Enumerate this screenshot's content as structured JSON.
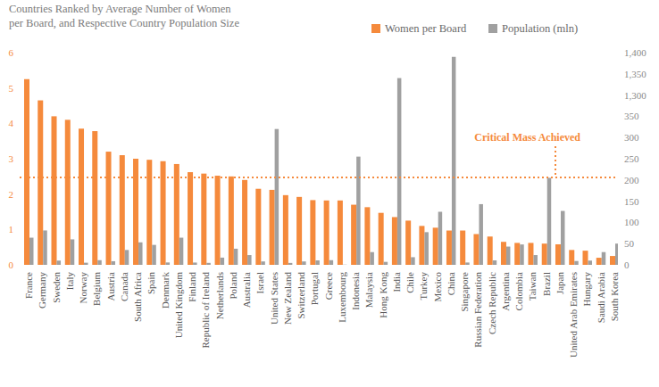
{
  "chart_data": {
    "type": "bar",
    "title": "Countries Ranked by Average Number of Women per Board, and Respective Country Population Size",
    "categories": [
      "France",
      "Germany",
      "Sweden",
      "Italy",
      "Norway",
      "Belgium",
      "Austria",
      "Canada",
      "South Africa",
      "Spain",
      "Denmark",
      "United Kingdom",
      "Finland",
      "Republic of Ireland",
      "Netherlands",
      "Poland",
      "Australia",
      "Israel",
      "United States",
      "New Zealand",
      "Switzerland",
      "Portugal",
      "Greece",
      "Luxembourg",
      "Indonesia",
      "Malaysia",
      "Hong Kong",
      "India",
      "Chile",
      "Turkey",
      "Mexico",
      "China",
      "Singapore",
      "Russian Federation",
      "Czech Republic",
      "Argentina",
      "Colombia",
      "Taiwan",
      "Brazil",
      "Japan",
      "United Arab Emirates",
      "Hungary",
      "Saudi Arabia",
      "South Korea"
    ],
    "series": [
      {
        "name": "Women per Board",
        "color": "#f58a3c",
        "values": [
          5.25,
          4.65,
          4.2,
          4.1,
          3.85,
          3.78,
          3.2,
          3.1,
          3.0,
          2.97,
          2.93,
          2.85,
          2.62,
          2.58,
          2.52,
          2.5,
          2.4,
          2.15,
          2.12,
          1.97,
          1.92,
          1.83,
          1.82,
          1.82,
          1.7,
          1.63,
          1.47,
          1.35,
          1.25,
          1.1,
          1.05,
          0.97,
          0.97,
          0.87,
          0.8,
          0.65,
          0.62,
          0.62,
          0.6,
          0.58,
          0.42,
          0.4,
          0.2,
          0.25
        ]
      },
      {
        "name": "Population (mln)",
        "color": "#a0a0a0",
        "axis": "y2",
        "values": [
          64,
          81,
          10,
          60,
          5,
          11,
          8.5,
          35,
          53,
          47,
          5.6,
          64,
          5.4,
          4.6,
          17,
          38,
          23,
          8,
          320,
          4.5,
          8,
          10.5,
          11,
          0.5,
          255,
          30,
          7,
          1340,
          18,
          77,
          125,
          1390,
          5.5,
          143,
          10.5,
          43,
          48,
          23,
          205,
          127,
          9,
          10,
          30,
          50
        ]
      }
    ],
    "ylim": [
      0,
      6
    ],
    "yticks": [
      0,
      1,
      2,
      3,
      4,
      5,
      6
    ],
    "y2lim": [
      0,
      1400
    ],
    "y2ticks": [
      0,
      50,
      100,
      150,
      200,
      250,
      300,
      350,
      {
        "value": 1300,
        "label": "1,300"
      },
      {
        "value": 1350,
        "label": "1,350"
      },
      {
        "value": 1400,
        "label": "1,400"
      }
    ],
    "annotations": [
      {
        "text": "Critical Mass Achieved",
        "y": 2.47
      }
    ],
    "legend": "top-right",
    "grid": false
  }
}
